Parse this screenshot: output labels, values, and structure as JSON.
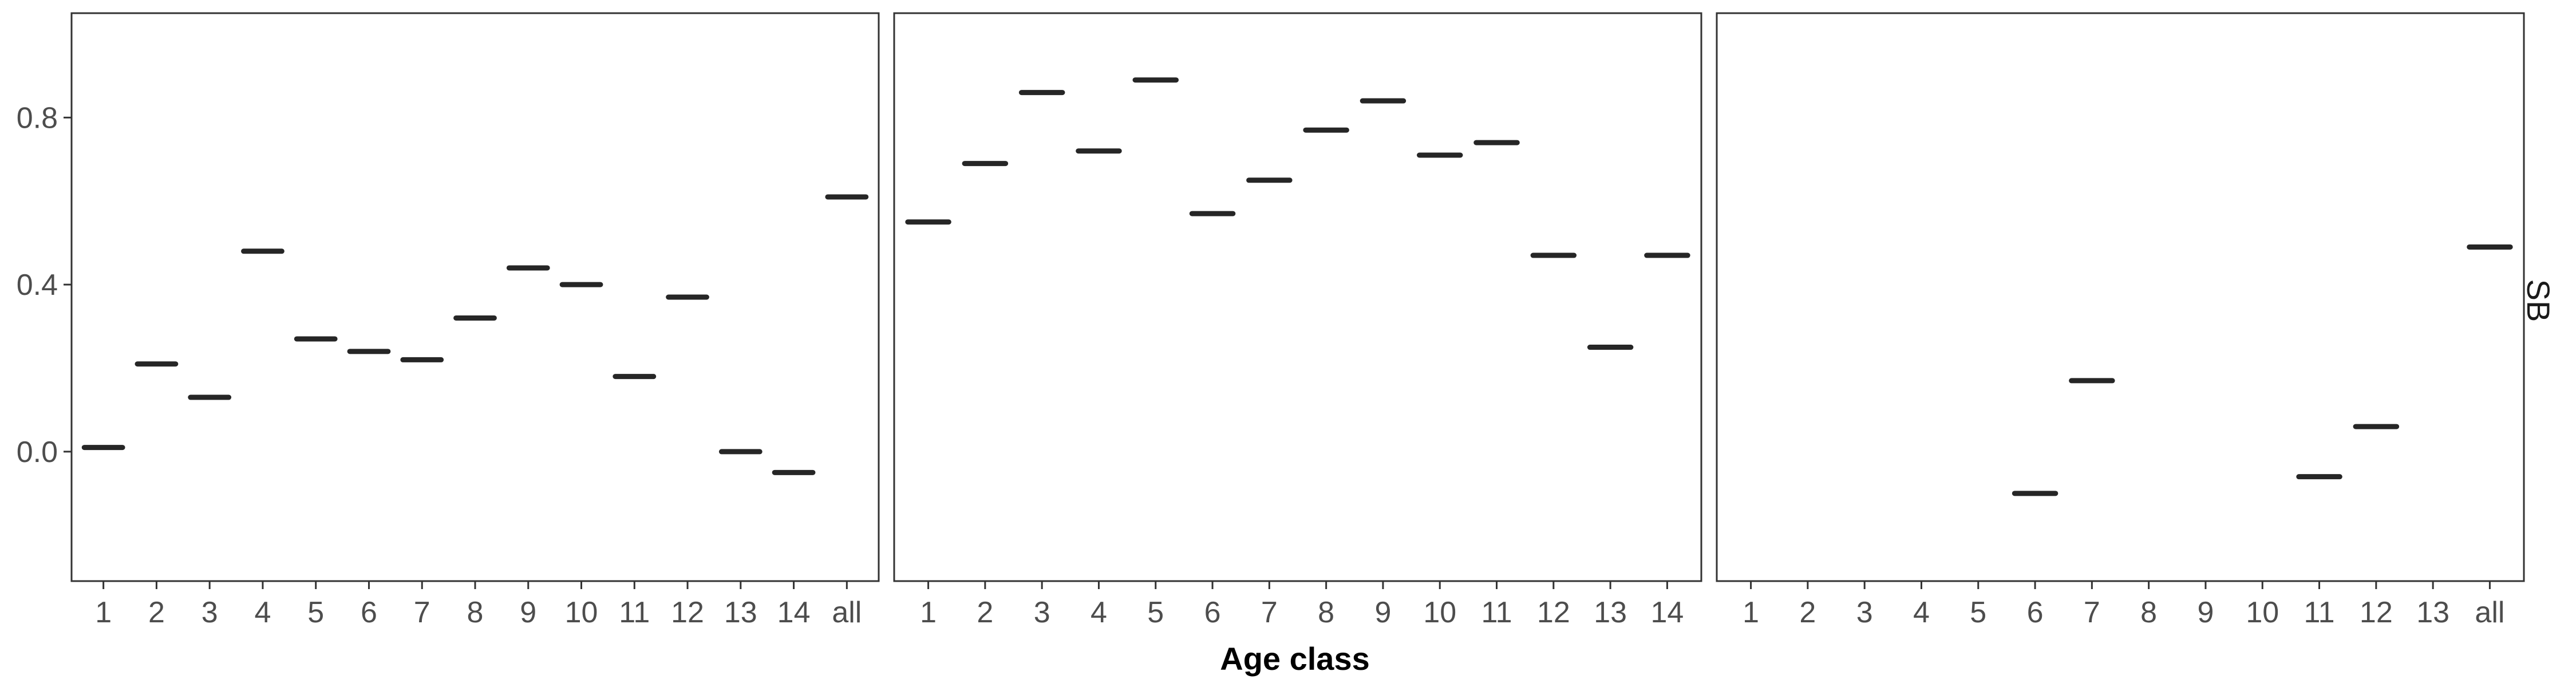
{
  "chart_data": {
    "type": "scatter",
    "marker": "horizontal-bar",
    "xlabel": "Age class",
    "ylabel": "",
    "ylim": [
      -0.31,
      1.05
    ],
    "y_ticks": [
      0.0,
      0.4,
      0.8
    ],
    "y_tick_labels": [
      "0.0",
      "0.4",
      "0.8"
    ],
    "grid": false,
    "facet_strip_label": "SB",
    "colors": {
      "marker": "#262626",
      "frame": "#333333",
      "tick_text": "#4d4d4d"
    },
    "panels": [
      {
        "categories": [
          "1",
          "2",
          "3",
          "4",
          "5",
          "6",
          "7",
          "8",
          "9",
          "10",
          "11",
          "12",
          "13",
          "14",
          "all"
        ],
        "values": [
          0.01,
          0.21,
          0.13,
          0.48,
          0.27,
          0.24,
          0.22,
          0.32,
          0.44,
          0.4,
          0.18,
          0.37,
          0.0,
          -0.05,
          0.61
        ]
      },
      {
        "categories": [
          "1",
          "2",
          "3",
          "4",
          "5",
          "6",
          "7",
          "8",
          "9",
          "10",
          "11",
          "12",
          "13",
          "14"
        ],
        "values": [
          0.55,
          0.69,
          0.86,
          0.72,
          0.89,
          0.57,
          0.65,
          0.77,
          0.84,
          0.71,
          0.74,
          0.47,
          0.25,
          0.47
        ]
      },
      {
        "categories": [
          "1",
          "2",
          "3",
          "4",
          "5",
          "6",
          "7",
          "8",
          "9",
          "10",
          "11",
          "12",
          "13",
          "all"
        ],
        "values": [
          null,
          null,
          null,
          null,
          null,
          -0.1,
          0.17,
          null,
          null,
          null,
          -0.06,
          0.06,
          null,
          0.49
        ]
      }
    ]
  }
}
